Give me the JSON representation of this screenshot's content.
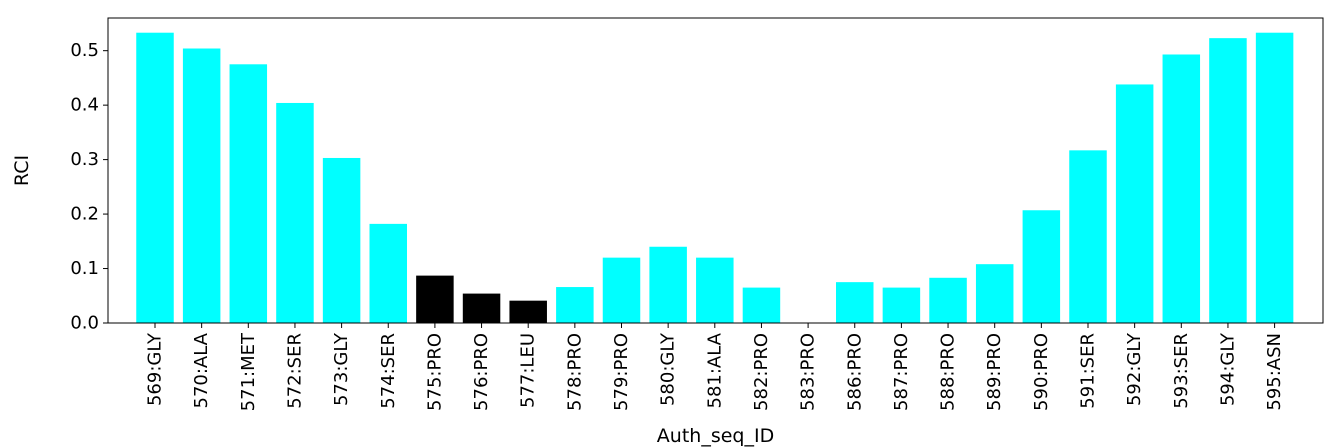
{
  "chart_data": {
    "type": "bar",
    "title": "",
    "xlabel": "Auth_seq_ID",
    "ylabel": "RCI",
    "ylim": [
      0,
      0.56
    ],
    "yticks": [
      0.0,
      0.1,
      0.2,
      0.3,
      0.4,
      0.5
    ],
    "grid": false,
    "categories": [
      "569:GLY",
      "570:ALA",
      "571:MET",
      "572:SER",
      "573:GLY",
      "574:SER",
      "575:PRO",
      "576:PRO",
      "577:LEU",
      "578:PRO",
      "579:PRO",
      "580:GLY",
      "581:ALA",
      "582:PRO",
      "583:PRO",
      "586:PRO",
      "587:PRO",
      "588:PRO",
      "589:PRO",
      "590:PRO",
      "591:SER",
      "592:GLY",
      "593:SER",
      "594:GLY",
      "595:ASN"
    ],
    "values": [
      0.533,
      0.504,
      0.475,
      0.404,
      0.303,
      0.182,
      0.087,
      0.054,
      0.041,
      0.066,
      0.12,
      0.14,
      0.12,
      0.065,
      0.0,
      0.075,
      0.065,
      0.083,
      0.108,
      0.207,
      0.317,
      0.438,
      0.493,
      0.523,
      0.533
    ],
    "bar_colors": [
      "#00FFFF",
      "#00FFFF",
      "#00FFFF",
      "#00FFFF",
      "#00FFFF",
      "#00FFFF",
      "#000000",
      "#000000",
      "#000000",
      "#00FFFF",
      "#00FFFF",
      "#00FFFF",
      "#00FFFF",
      "#00FFFF",
      "#00FFFF",
      "#00FFFF",
      "#00FFFF",
      "#00FFFF",
      "#00FFFF",
      "#00FFFF",
      "#00FFFF",
      "#00FFFF",
      "#00FFFF",
      "#00FFFF",
      "#00FFFF"
    ]
  }
}
